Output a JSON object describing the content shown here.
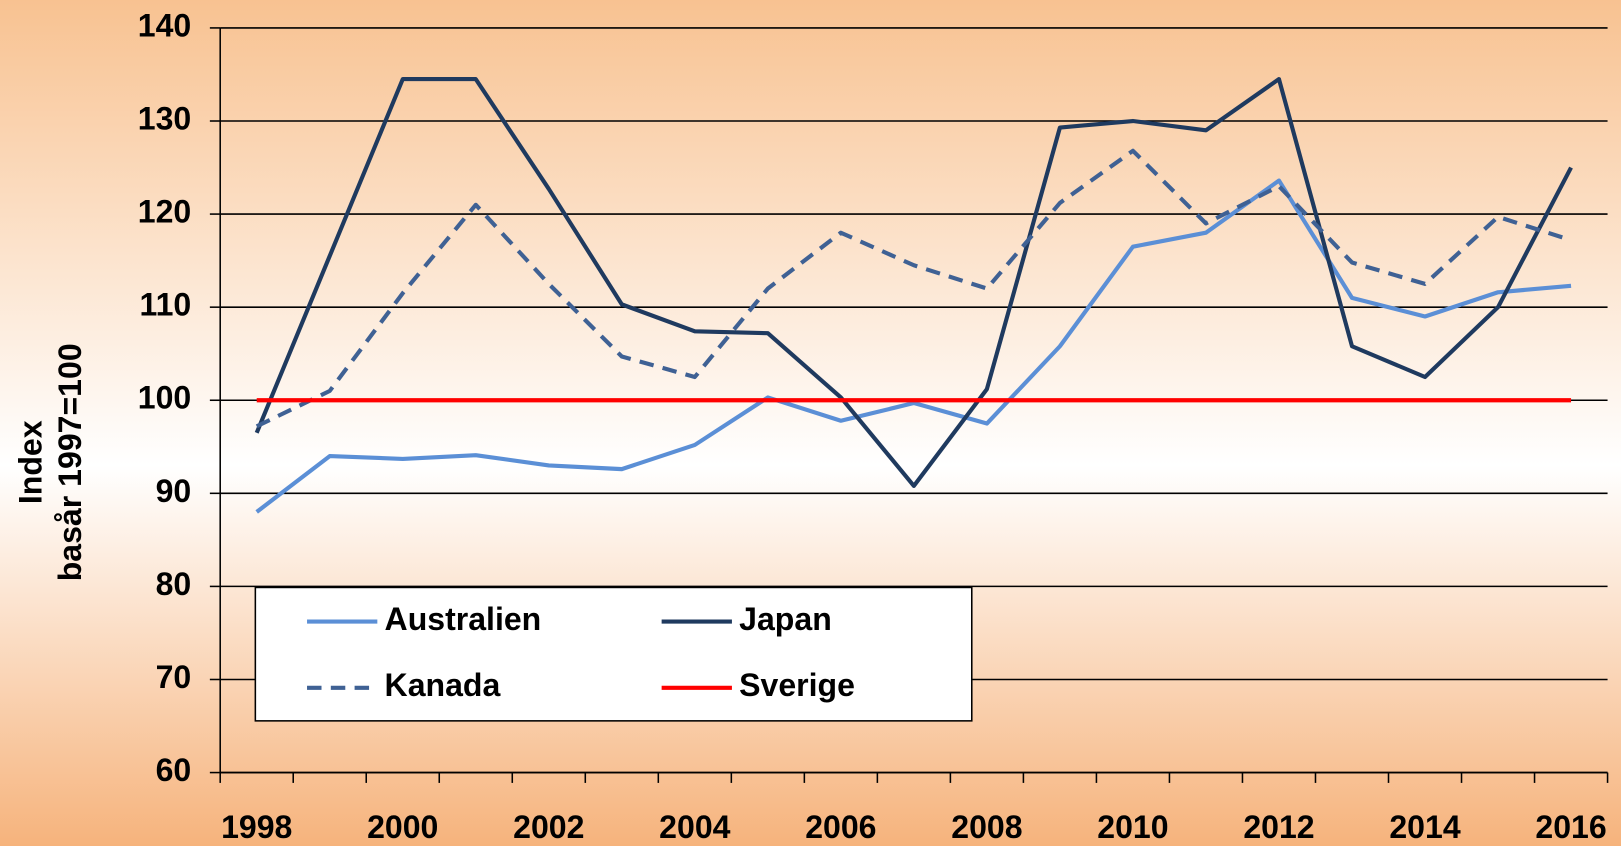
{
  "chart_data": {
    "type": "line",
    "ylabel": [
      "Index",
      "basår 1997=100"
    ],
    "categories": [
      "1998",
      null,
      "2000",
      null,
      "2002",
      null,
      "2004",
      null,
      "2006",
      null,
      "2008",
      null,
      "2010",
      null,
      "2012",
      null,
      "2014",
      null,
      "2016"
    ],
    "series": [
      {
        "name": "Australien",
        "color": "#5b8fd6",
        "dashed": false,
        "values": [
          88,
          94,
          93.7,
          94.1,
          93,
          92.6,
          95.2,
          100.3,
          97.8,
          99.7,
          97.5,
          105.8,
          116.5,
          118,
          123.6,
          111,
          109,
          111.6,
          112.3
        ]
      },
      {
        "name": "Japan",
        "color": "#1f3a5f",
        "dashed": false,
        "values": [
          96.5,
          115.5,
          134.5,
          134.5,
          122.7,
          110.3,
          107.4,
          107.2,
          100.3,
          90.8,
          101.2,
          129.3,
          130,
          129,
          134.5,
          105.8,
          102.5,
          110,
          125
        ]
      },
      {
        "name": "Kanada",
        "color": "#3f6194",
        "dashed": true,
        "values": [
          97.2,
          101,
          111.5,
          121,
          112.5,
          104.7,
          102.5,
          112,
          118,
          114.5,
          112,
          121.2,
          126.8,
          119,
          123,
          114.8,
          112.5,
          119.7,
          117.2
        ]
      },
      {
        "name": "Sverige",
        "color": "#ff0000",
        "dashed": false,
        "values": [
          100,
          100,
          100,
          100,
          100,
          100,
          100,
          100,
          100,
          100,
          100,
          100,
          100,
          100,
          100,
          100,
          100,
          100,
          100
        ]
      }
    ],
    "ylim": [
      60,
      140
    ],
    "yticks": [
      60,
      70,
      80,
      90,
      100,
      110,
      120,
      130,
      140
    ],
    "grid": true
  }
}
